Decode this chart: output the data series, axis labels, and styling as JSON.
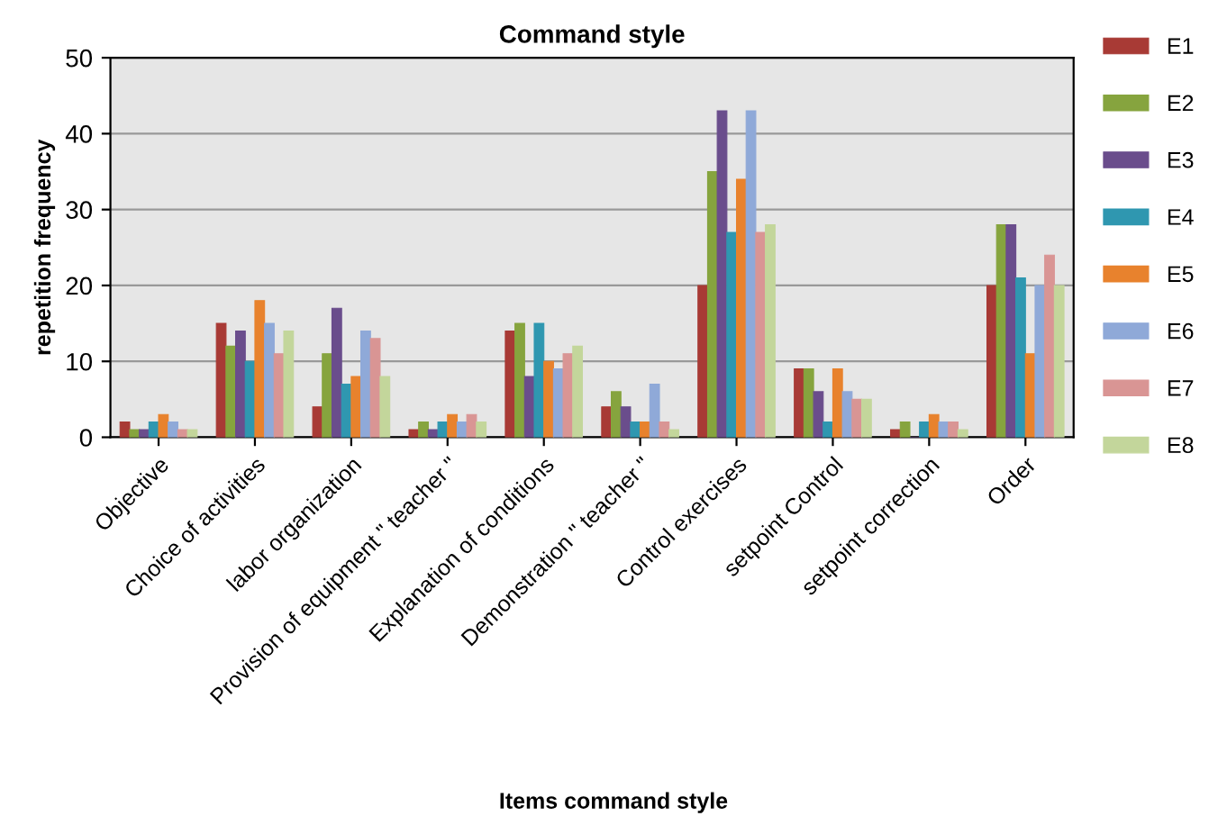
{
  "chart_data": {
    "type": "bar",
    "title": "Command style",
    "xlabel": "Items command style",
    "ylabel": "repetition frequency",
    "categories": [
      "Objective",
      "Choice of activities",
      "labor organization",
      "Provision of equipment \" teacher \"",
      "Explanation of conditions",
      "Demonstration \" teacher \"",
      "Control exercises",
      "setpoint Control",
      "setpoint correction",
      "Order"
    ],
    "series": [
      {
        "name": "E1",
        "color": "#a83a35",
        "values": [
          2,
          15,
          4,
          1,
          14,
          4,
          20,
          9,
          1,
          20
        ]
      },
      {
        "name": "E2",
        "color": "#86a43e",
        "values": [
          1,
          12,
          11,
          2,
          15,
          6,
          35,
          9,
          2,
          28
        ]
      },
      {
        "name": "E3",
        "color": "#6a4d8c",
        "values": [
          1,
          14,
          17,
          1,
          8,
          4,
          43,
          6,
          0,
          28
        ]
      },
      {
        "name": "E4",
        "color": "#2f97b0",
        "values": [
          2,
          10,
          7,
          2,
          15,
          2,
          27,
          2,
          2,
          21
        ]
      },
      {
        "name": "E5",
        "color": "#e8822d",
        "values": [
          3,
          18,
          8,
          3,
          10,
          2,
          34,
          9,
          3,
          11
        ]
      },
      {
        "name": "E6",
        "color": "#8fa9d8",
        "values": [
          2,
          15,
          14,
          2,
          9,
          7,
          43,
          6,
          2,
          20
        ]
      },
      {
        "name": "E7",
        "color": "#d99594",
        "values": [
          1,
          11,
          13,
          3,
          11,
          2,
          27,
          5,
          2,
          24
        ]
      },
      {
        "name": "E8",
        "color": "#c3d69b",
        "values": [
          1,
          14,
          8,
          2,
          12,
          1,
          28,
          5,
          1,
          20
        ]
      }
    ],
    "ylim": [
      0,
      50
    ],
    "yticks": [
      0,
      10,
      20,
      30,
      40,
      50
    ],
    "grid": "y",
    "legend": "right"
  }
}
